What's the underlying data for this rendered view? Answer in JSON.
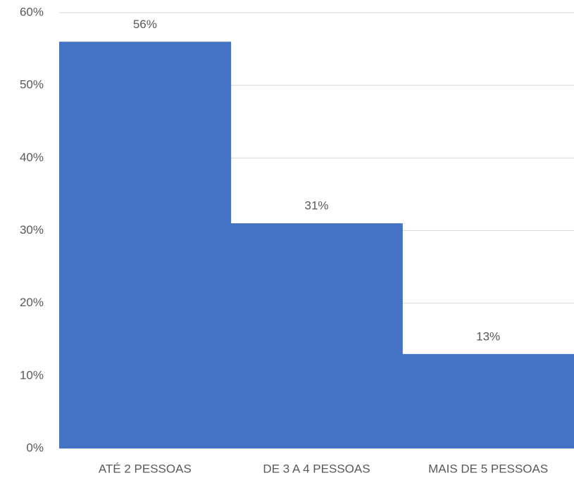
{
  "chart_data": {
    "type": "bar",
    "categories": [
      "ATÉ 2 PESSOAS",
      "DE 3 A 4 PESSOAS",
      "MAIS DE 5 PESSOAS"
    ],
    "values": [
      56,
      31,
      13
    ],
    "value_labels": [
      "56%",
      "31%",
      "13%"
    ],
    "color": "#4472c4",
    "ylim": [
      0,
      60
    ],
    "yticks": [
      {
        "value": 0,
        "label": "0%"
      },
      {
        "value": 10,
        "label": "10%"
      },
      {
        "value": 20,
        "label": "20%"
      },
      {
        "value": 30,
        "label": "30%"
      },
      {
        "value": 40,
        "label": "40%"
      },
      {
        "value": 50,
        "label": "50%"
      },
      {
        "value": 60,
        "label": "60%"
      }
    ],
    "grid": true
  }
}
